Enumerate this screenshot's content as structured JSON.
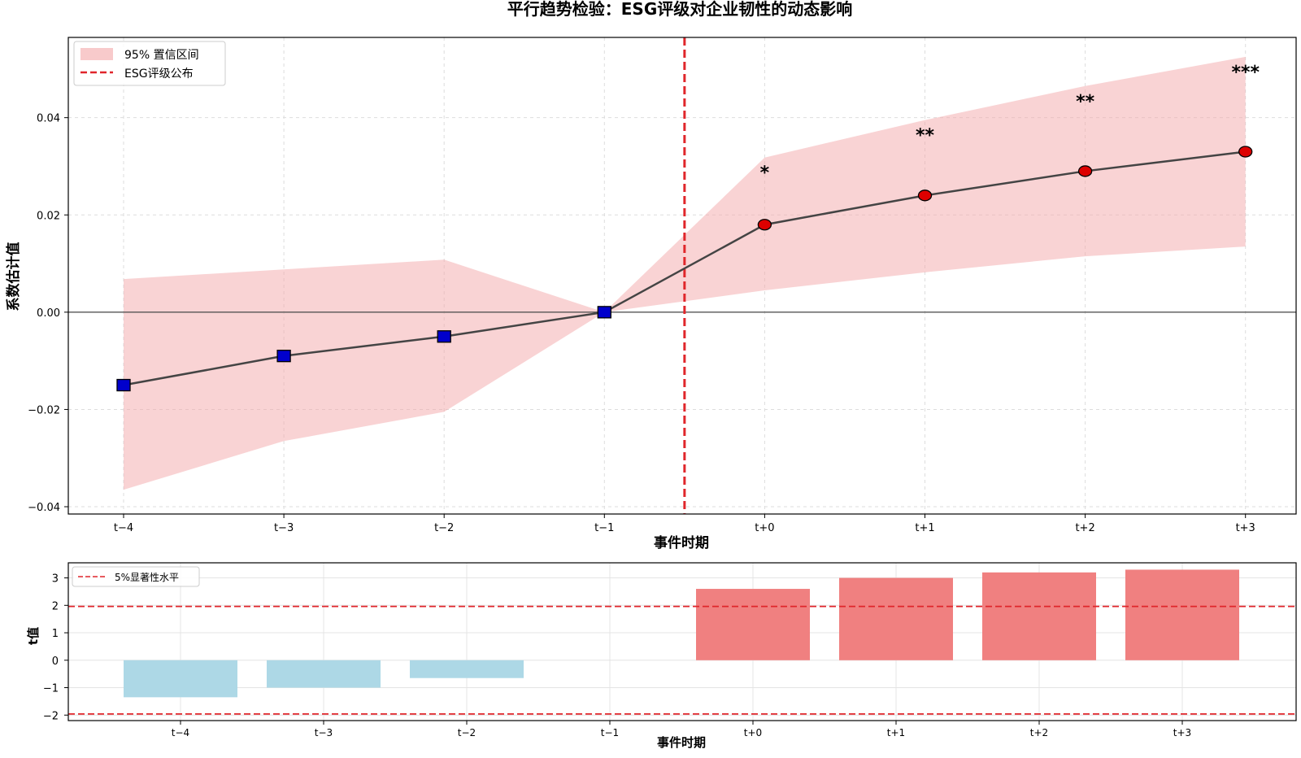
{
  "chart_data": [
    {
      "type": "line",
      "title": "平行趋势检验：ESG评级对企业韧性的动态影响",
      "xlabel": "事件时期",
      "ylabel": "系数估计值",
      "categories": [
        "t−4",
        "t−3",
        "t−2",
        "t−1",
        "t+0",
        "t+1",
        "t+2",
        "t+3"
      ],
      "series": [
        {
          "values": [
            -0.015,
            -0.009,
            -0.005,
            0.0,
            0.018,
            0.024,
            0.029,
            0.033
          ],
          "ci_lower": [
            -0.0365,
            -0.0265,
            -0.0205,
            0.0,
            0.0045,
            0.0082,
            0.0115,
            0.0135
          ],
          "ci_upper": [
            0.0068,
            0.0088,
            0.0108,
            0.0,
            0.0318,
            0.0395,
            0.0465,
            0.0525
          ],
          "significance": [
            "",
            "",
            "",
            "",
            "*",
            "**",
            "**",
            "***"
          ],
          "pre_marker_color": "#0000cc",
          "post_marker_color": "#dd0000",
          "line_color": "#444444",
          "ci_color": "#f4a7a9"
        }
      ],
      "ylim": [
        -0.0415,
        0.0565
      ],
      "yticks": [
        "0.04",
        "0.02",
        "0.00",
        "−0.02",
        "−0.04"
      ],
      "ytick_values": [
        0.04,
        0.02,
        0.0,
        -0.02,
        -0.04
      ],
      "event_line_position": 3.5,
      "event_line_color": "#e0262b",
      "zero_line": true,
      "grid": true,
      "legend": {
        "placement": "top-left",
        "entries": [
          "95% 置信区间",
          "ESG评级公布"
        ]
      }
    },
    {
      "type": "bar",
      "xlabel": "事件时期",
      "ylabel": "t值",
      "categories": [
        "t−4",
        "t−3",
        "t−2",
        "t−1",
        "t+0",
        "t+1",
        "t+2",
        "t+3"
      ],
      "values": [
        -1.35,
        -1.0,
        -0.65,
        0,
        2.6,
        3.0,
        3.2,
        3.3
      ],
      "negative_color": "#add8e6",
      "positive_color": "#f08080",
      "ylim": [
        -2.2,
        3.55
      ],
      "yticks": [
        "3",
        "2",
        "1",
        "0",
        "−1",
        "−2"
      ],
      "ytick_values": [
        3,
        2,
        1,
        0,
        -1,
        -2
      ],
      "threshold_lines": [
        1.96,
        -1.96
      ],
      "threshold_color": "#e0262b",
      "grid": true,
      "legend": {
        "placement": "top-left",
        "entries": [
          "5%显著性水平"
        ]
      }
    }
  ]
}
